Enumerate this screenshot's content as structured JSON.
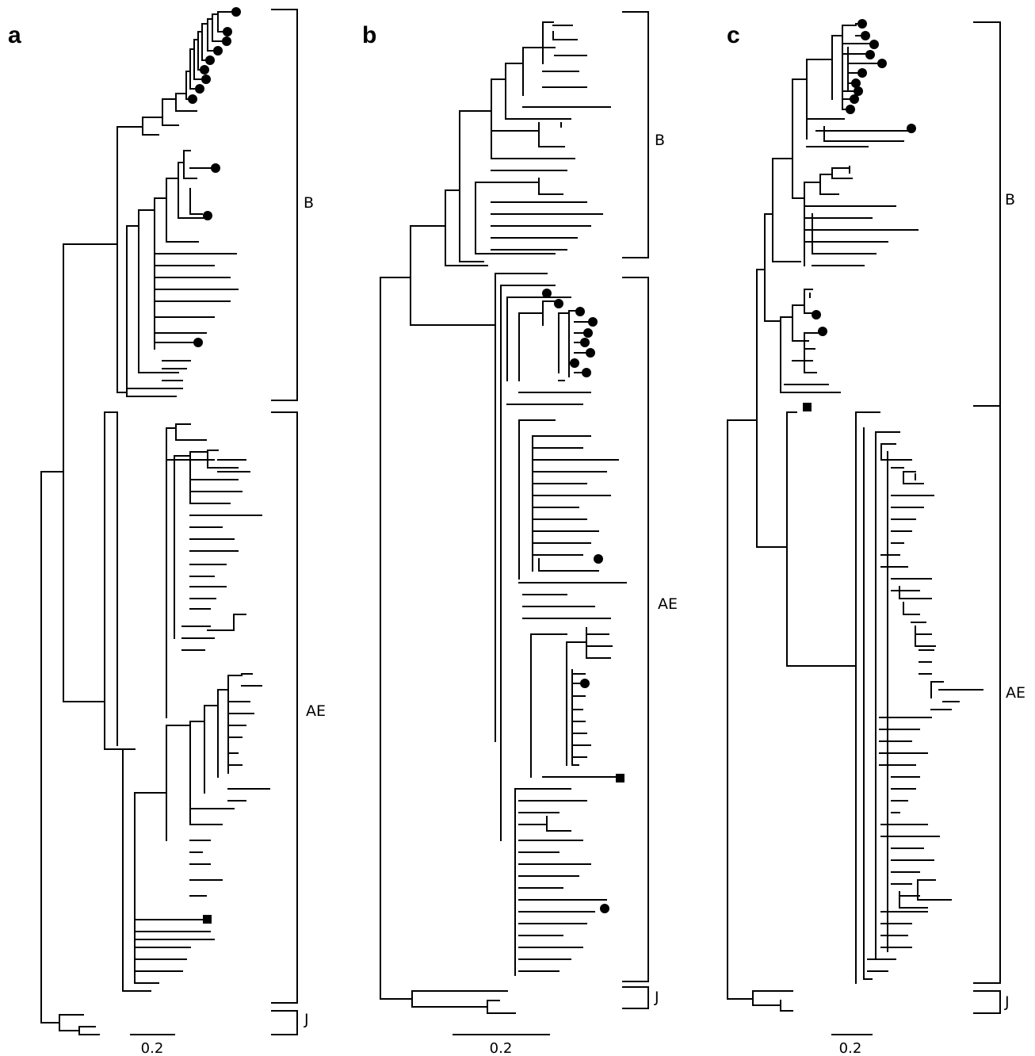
{
  "figure": {
    "panels": [
      {
        "letter": "a",
        "clades": [
          "B",
          "AE",
          "J"
        ],
        "scale_bar": "0.2",
        "markers": {
          "circles": 11,
          "squares": 1
        }
      },
      {
        "letter": "b",
        "clades": [
          "B",
          "AE",
          "J"
        ],
        "scale_bar": "0.2",
        "markers": {
          "circles": 11,
          "squares": 1
        }
      },
      {
        "letter": "c",
        "clades": [
          "B",
          "AE",
          "J"
        ],
        "scale_bar": "0.2",
        "markers": {
          "circles": 12,
          "squares": 1
        }
      }
    ],
    "colors": {
      "ink": "#000000",
      "background": "#ffffff"
    }
  }
}
